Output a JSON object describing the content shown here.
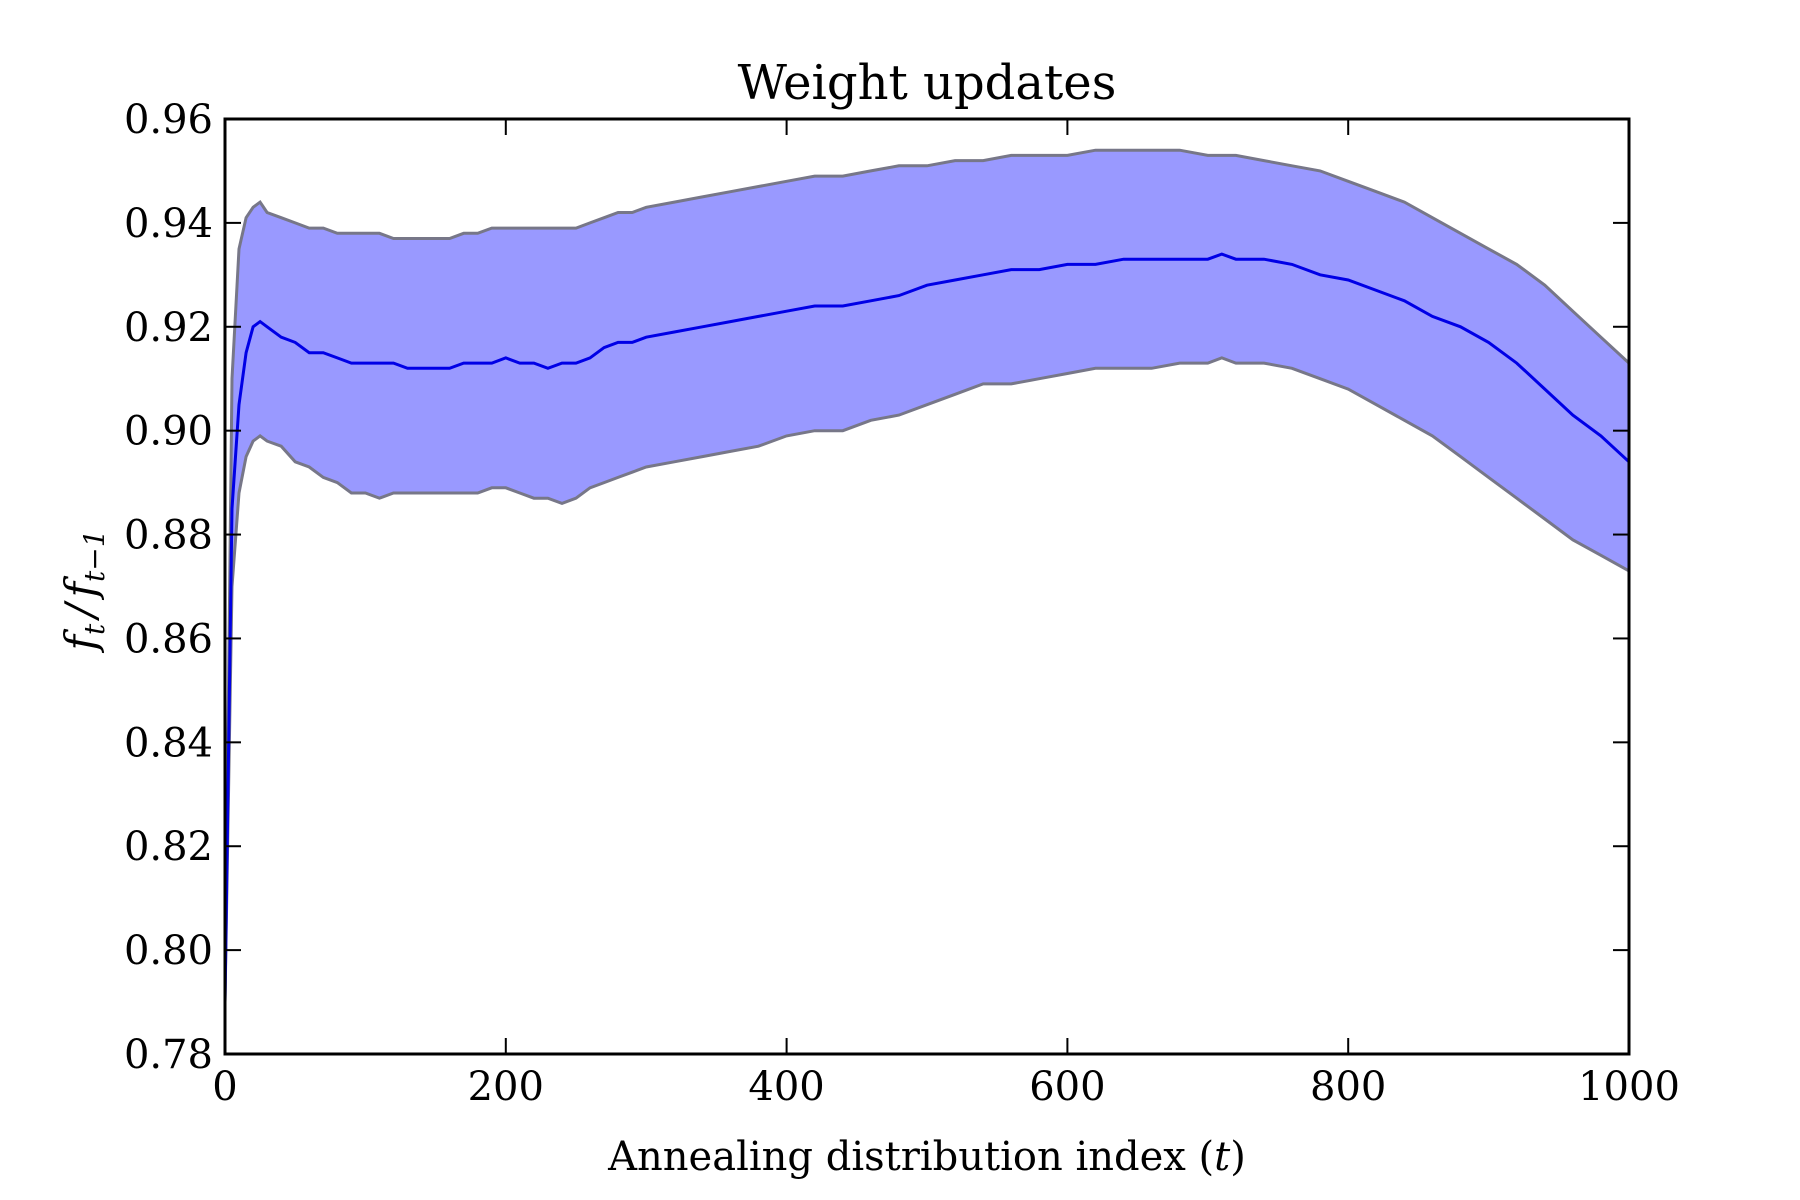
{
  "chart_data": {
    "type": "line",
    "title": "Weight updates",
    "xlabel": "Annealing distribution index (t)",
    "xlabel_parts": {
      "text": "Annealing distribution index (",
      "var": "t",
      "close": ")"
    },
    "ylabel": "f_t / f_{t-1}",
    "ylabel_parts": {
      "f1": "f",
      "sub1": "t",
      "slash": "/",
      "f2": "f",
      "sub2": "t−1"
    },
    "xlim": [
      0,
      1000
    ],
    "ylim": [
      0.78,
      0.96
    ],
    "xticks": [
      0,
      200,
      400,
      600,
      800,
      1000
    ],
    "xtick_labels": [
      "0",
      "200",
      "400",
      "600",
      "800",
      "1000"
    ],
    "yticks": [
      0.78,
      0.8,
      0.82,
      0.84,
      0.86,
      0.88,
      0.9,
      0.92,
      0.94,
      0.96
    ],
    "ytick_labels": [
      "0.78",
      "0.80",
      "0.82",
      "0.84",
      "0.86",
      "0.88",
      "0.90",
      "0.92",
      "0.94",
      "0.96"
    ],
    "grid": false,
    "legend": "none",
    "x": [
      0,
      5,
      10,
      15,
      20,
      25,
      30,
      40,
      50,
      60,
      70,
      80,
      90,
      100,
      110,
      120,
      130,
      140,
      150,
      160,
      170,
      180,
      190,
      200,
      210,
      220,
      230,
      240,
      250,
      260,
      270,
      280,
      290,
      300,
      320,
      340,
      360,
      380,
      400,
      420,
      440,
      460,
      480,
      500,
      520,
      540,
      560,
      580,
      600,
      620,
      640,
      660,
      680,
      700,
      710,
      720,
      740,
      760,
      780,
      800,
      820,
      840,
      860,
      880,
      900,
      920,
      940,
      960,
      980,
      1000
    ],
    "series": [
      {
        "values": [
          0.79,
          0.885,
          0.905,
          0.915,
          0.92,
          0.921,
          0.92,
          0.918,
          0.917,
          0.915,
          0.915,
          0.914,
          0.913,
          0.913,
          0.913,
          0.913,
          0.912,
          0.912,
          0.912,
          0.912,
          0.913,
          0.913,
          0.913,
          0.914,
          0.913,
          0.913,
          0.912,
          0.913,
          0.913,
          0.914,
          0.916,
          0.917,
          0.917,
          0.918,
          0.919,
          0.92,
          0.921,
          0.922,
          0.923,
          0.924,
          0.924,
          0.925,
          0.926,
          0.928,
          0.929,
          0.93,
          0.931,
          0.931,
          0.932,
          0.932,
          0.933,
          0.933,
          0.933,
          0.933,
          0.934,
          0.933,
          0.933,
          0.932,
          0.93,
          0.929,
          0.927,
          0.925,
          0.922,
          0.92,
          0.917,
          0.913,
          0.908,
          0.903,
          0.899,
          0.894
        ],
        "lower": [
          0.79,
          0.87,
          0.888,
          0.895,
          0.898,
          0.899,
          0.898,
          0.897,
          0.894,
          0.893,
          0.891,
          0.89,
          0.888,
          0.888,
          0.887,
          0.888,
          0.888,
          0.888,
          0.888,
          0.888,
          0.888,
          0.888,
          0.889,
          0.889,
          0.888,
          0.887,
          0.887,
          0.886,
          0.887,
          0.889,
          0.89,
          0.891,
          0.892,
          0.893,
          0.894,
          0.895,
          0.896,
          0.897,
          0.899,
          0.9,
          0.9,
          0.902,
          0.903,
          0.905,
          0.907,
          0.909,
          0.909,
          0.91,
          0.911,
          0.912,
          0.912,
          0.912,
          0.913,
          0.913,
          0.914,
          0.913,
          0.913,
          0.912,
          0.91,
          0.908,
          0.905,
          0.902,
          0.899,
          0.895,
          0.891,
          0.887,
          0.883,
          0.879,
          0.876,
          0.873
        ],
        "upper": [
          0.79,
          0.91,
          0.935,
          0.941,
          0.943,
          0.944,
          0.942,
          0.941,
          0.94,
          0.939,
          0.939,
          0.938,
          0.938,
          0.938,
          0.938,
          0.937,
          0.937,
          0.937,
          0.937,
          0.937,
          0.938,
          0.938,
          0.939,
          0.939,
          0.939,
          0.939,
          0.939,
          0.939,
          0.939,
          0.94,
          0.941,
          0.942,
          0.942,
          0.943,
          0.944,
          0.945,
          0.946,
          0.947,
          0.948,
          0.949,
          0.949,
          0.95,
          0.951,
          0.951,
          0.952,
          0.952,
          0.953,
          0.953,
          0.953,
          0.954,
          0.954,
          0.954,
          0.954,
          0.953,
          0.953,
          0.953,
          0.952,
          0.951,
          0.95,
          0.948,
          0.946,
          0.944,
          0.941,
          0.938,
          0.935,
          0.932,
          0.928,
          0.923,
          0.918,
          0.913
        ]
      }
    ],
    "colors": {
      "line": "#0000e6",
      "band_fill": "#9999ff",
      "band_edge": "#777788",
      "axes": "#000000",
      "background": "#ffffff"
    }
  }
}
